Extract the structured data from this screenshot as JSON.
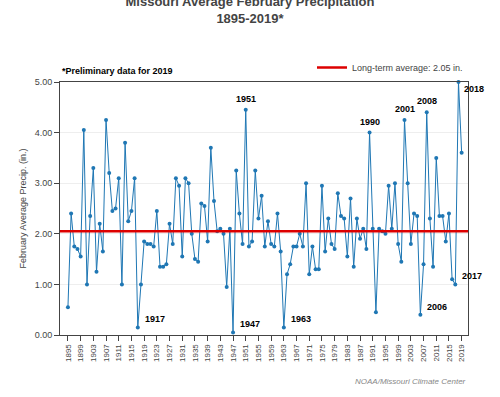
{
  "chart_data": {
    "type": "line",
    "title": "Missouri Average February Precipitation",
    "subtitle": "1895-2019*",
    "ylabel": "February Average Precip. (in.)",
    "marker": "circle",
    "x": [
      1895,
      1896,
      1897,
      1898,
      1899,
      1900,
      1901,
      1902,
      1903,
      1904,
      1905,
      1906,
      1907,
      1908,
      1909,
      1910,
      1911,
      1912,
      1913,
      1914,
      1915,
      1916,
      1917,
      1918,
      1919,
      1920,
      1921,
      1922,
      1923,
      1924,
      1925,
      1926,
      1927,
      1928,
      1929,
      1930,
      1931,
      1932,
      1933,
      1934,
      1935,
      1936,
      1937,
      1938,
      1939,
      1940,
      1941,
      1942,
      1943,
      1944,
      1945,
      1946,
      1947,
      1948,
      1949,
      1950,
      1951,
      1952,
      1953,
      1954,
      1955,
      1956,
      1957,
      1958,
      1959,
      1960,
      1961,
      1962,
      1963,
      1964,
      1965,
      1966,
      1967,
      1968,
      1969,
      1970,
      1971,
      1972,
      1973,
      1974,
      1975,
      1976,
      1977,
      1978,
      1979,
      1980,
      1981,
      1982,
      1983,
      1984,
      1985,
      1986,
      1987,
      1988,
      1989,
      1990,
      1991,
      1992,
      1993,
      1994,
      1995,
      1996,
      1997,
      1998,
      1999,
      2000,
      2001,
      2002,
      2003,
      2004,
      2005,
      2006,
      2007,
      2008,
      2009,
      2010,
      2011,
      2012,
      2013,
      2014,
      2015,
      2016,
      2017,
      2018,
      2019
    ],
    "values": [
      0.55,
      2.4,
      1.75,
      1.7,
      1.55,
      4.05,
      1.0,
      2.35,
      3.3,
      1.25,
      2.2,
      1.65,
      4.25,
      3.2,
      2.45,
      2.5,
      3.1,
      1.0,
      3.8,
      2.25,
      2.45,
      3.1,
      0.15,
      1.0,
      1.85,
      1.8,
      1.8,
      1.75,
      2.45,
      1.35,
      1.35,
      1.4,
      2.2,
      1.8,
      3.1,
      2.95,
      1.55,
      3.1,
      3.0,
      2.0,
      1.5,
      1.45,
      2.6,
      2.55,
      1.85,
      3.7,
      2.65,
      2.05,
      2.1,
      2.0,
      0.95,
      2.1,
      0.05,
      3.25,
      2.4,
      1.8,
      4.45,
      1.75,
      1.85,
      3.25,
      2.3,
      2.75,
      1.75,
      2.25,
      1.8,
      1.75,
      2.4,
      1.65,
      0.15,
      1.2,
      1.4,
      1.75,
      1.75,
      2.0,
      1.75,
      3.0,
      1.2,
      1.75,
      1.3,
      1.3,
      2.95,
      1.65,
      2.3,
      1.8,
      1.7,
      2.8,
      2.35,
      2.3,
      1.55,
      2.7,
      1.35,
      2.3,
      1.9,
      2.1,
      1.7,
      4.0,
      2.1,
      0.45,
      2.1,
      2.05,
      2.0,
      2.95,
      2.1,
      3.0,
      1.8,
      1.45,
      4.25,
      3.0,
      1.8,
      2.4,
      2.35,
      0.4,
      1.4,
      4.4,
      2.3,
      1.35,
      3.5,
      2.35,
      2.35,
      1.85,
      2.4,
      1.1,
      1.0,
      5.0,
      3.6
    ],
    "reference_line": {
      "value": 2.05,
      "label": "Long-term average: 2.05 in.",
      "color": "#dd0000"
    },
    "legend": "top right",
    "note": "*Preliminary data for 2019",
    "source": "NOAA/Missouri Climate Center",
    "annotations": [
      {
        "text": "2018",
        "x": 2018
      },
      {
        "text": "1951",
        "x": 1951
      },
      {
        "text": "1990",
        "x": 1990
      },
      {
        "text": "2001",
        "x": 2001
      },
      {
        "text": "2008",
        "x": 2008
      },
      {
        "text": "1917",
        "x": 1917
      },
      {
        "text": "1947",
        "x": 1947
      },
      {
        "text": "1963",
        "x": 1963
      },
      {
        "text": "2006",
        "x": 2006
      },
      {
        "text": "2017",
        "x": 2017
      }
    ],
    "xlim": [
      1892.5,
      2021
    ],
    "xticks": [
      1895,
      1899,
      1903,
      1907,
      1911,
      1915,
      1919,
      1923,
      1927,
      1931,
      1935,
      1939,
      1943,
      1947,
      1951,
      1955,
      1959,
      1963,
      1967,
      1971,
      1975,
      1979,
      1983,
      1987,
      1991,
      1995,
      1999,
      2003,
      2007,
      2011,
      2015,
      2019
    ],
    "ylim": [
      0.0,
      5.0
    ],
    "yticks": [
      {
        "value": 0.0,
        "label": "0.00"
      },
      {
        "value": 1.0,
        "label": "1.00"
      },
      {
        "value": 2.0,
        "label": "2.00"
      },
      {
        "value": 3.0,
        "label": "3.00"
      },
      {
        "value": 4.0,
        "label": "4.00"
      },
      {
        "value": 5.0,
        "label": "5.00"
      }
    ],
    "grid": "y"
  }
}
